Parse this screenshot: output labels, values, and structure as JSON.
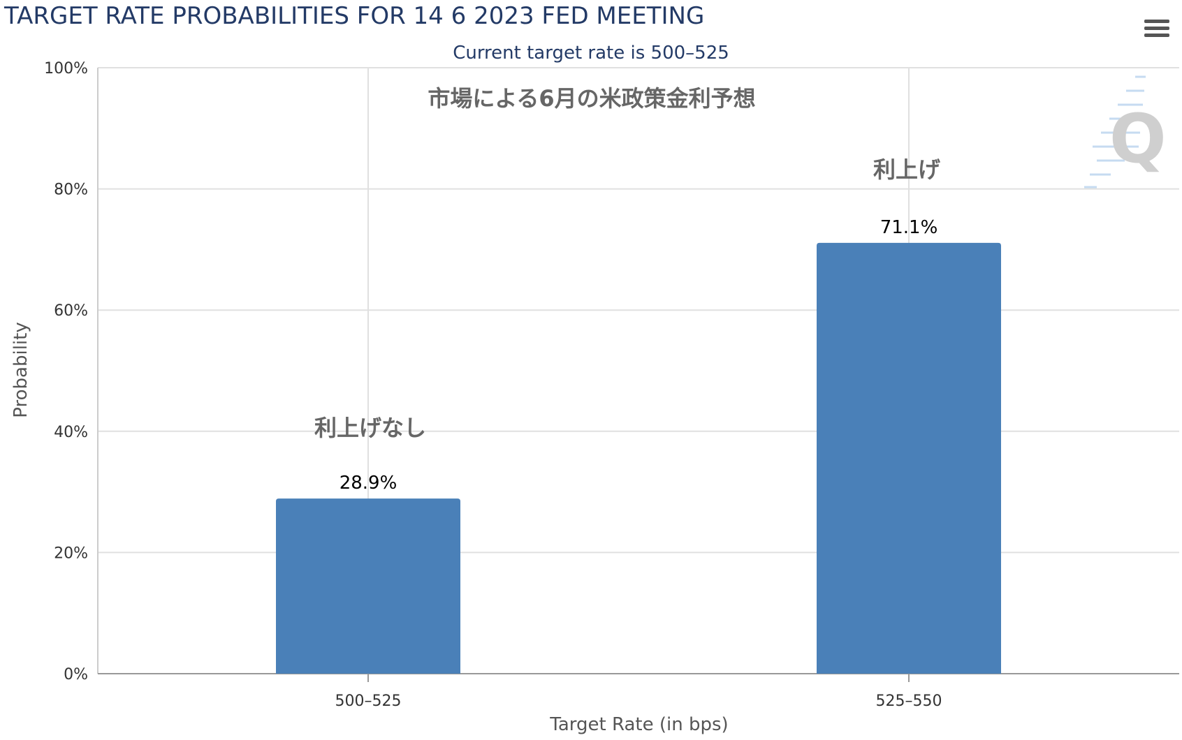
{
  "header": {
    "title": "TARGET RATE PROBABILITIES FOR 14 6 2023 FED MEETING",
    "subtitle": "Current target rate is 500–525",
    "menu_icon": "hamburger-menu-icon"
  },
  "watermark": {
    "letter": "Q"
  },
  "annotations": {
    "chart_caption": "市場による6月の米政策金利予想",
    "no_hike": "利上げなし",
    "hike": "利上げ"
  },
  "colors": {
    "bar": "#4a80b8",
    "title": "#233a66",
    "grid": "#e0e0e0"
  },
  "chart_data": {
    "type": "bar",
    "title": "TARGET RATE PROBABILITIES FOR 14 6 2023 FED MEETING",
    "subtitle": "Current target rate is 500–525",
    "categories": [
      "500–525",
      "525–550"
    ],
    "values": [
      28.9,
      71.1
    ],
    "data_labels": [
      "28.9%",
      "71.1%"
    ],
    "xlabel": "Target Rate (in bps)",
    "ylabel": "Probability",
    "ylim": [
      0,
      100
    ],
    "yticks": [
      "0%",
      "20%",
      "40%",
      "60%",
      "80%",
      "100%"
    ],
    "grid": true
  }
}
